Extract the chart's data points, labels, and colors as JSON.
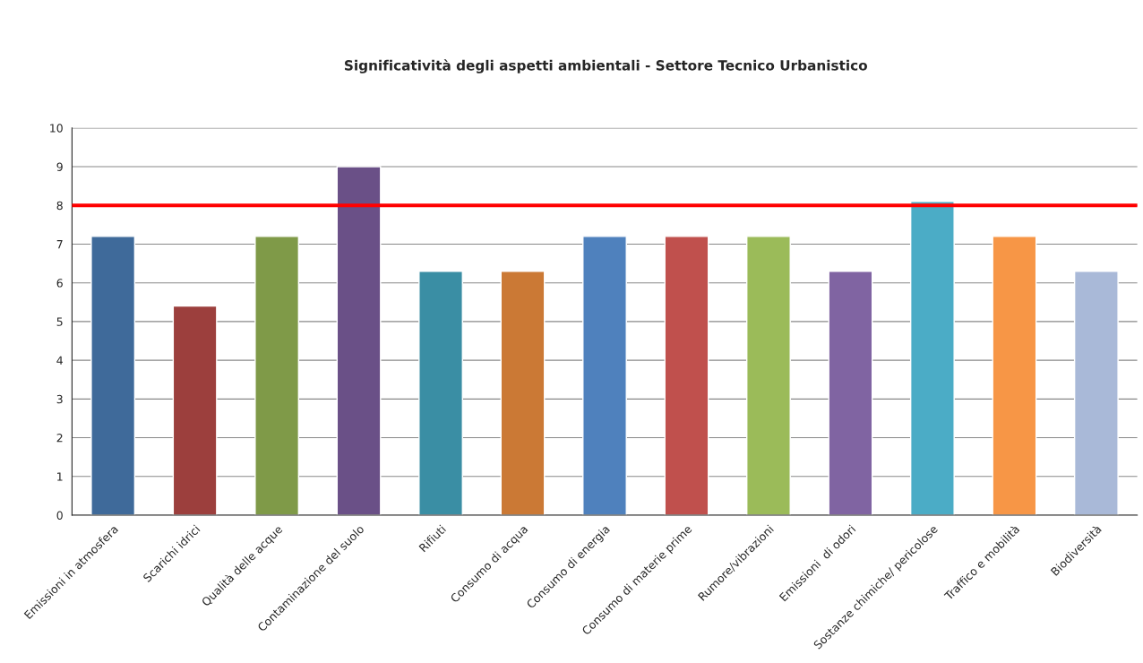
{
  "chart_data": {
    "type": "bar",
    "title": "Significatività degli aspetti ambientali - Settore Tecnico Urbanistico",
    "categories": [
      "Emissioni in atmosfera",
      "Scarichi idrici",
      "Qualità delle acque",
      "Contaminazione del suolo",
      "Rifiuti",
      "Consumo di acqua",
      "Consumo di energia",
      "Consumo di materie prime",
      "Rumore/vibrazioni",
      "Emissioni  di odori",
      "Sostanze chimiche/ pericolose",
      "Traffico e mobilità",
      "Biodiversità"
    ],
    "values": [
      7.2,
      5.4,
      7.2,
      9,
      6.3,
      6.3,
      7.2,
      7.2,
      7.2,
      6.3,
      8.1,
      7.2,
      6.3
    ],
    "colors": [
      "#3f6a9a",
      "#9c3f3d",
      "#7f9a48",
      "#6a5087",
      "#3a8ea4",
      "#cb7935",
      "#4f81bd",
      "#c0504d",
      "#9bbb59",
      "#8064a2",
      "#4bacc6",
      "#f79646",
      "#a9b9d8"
    ],
    "ylim": [
      0,
      10
    ],
    "yticks": [
      0,
      1,
      2,
      3,
      4,
      5,
      6,
      7,
      8,
      9,
      10
    ],
    "grid": "y",
    "ref_lines": [
      {
        "axis": "y",
        "value": 8,
        "color": "#ff0000"
      }
    ]
  }
}
